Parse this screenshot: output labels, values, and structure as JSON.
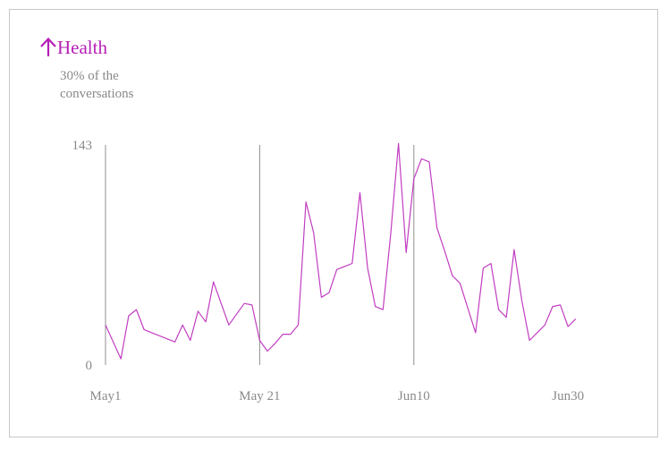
{
  "header": {
    "title": "Health",
    "subtitle": "30% of the conversations",
    "trend_icon": "arrow-up-icon",
    "accent_color": "#b51fb5"
  },
  "chart_data": {
    "type": "line",
    "title": "Health",
    "subtitle": "30% of the conversations",
    "xlabel": "",
    "ylabel": "",
    "x_tick_labels": [
      "May1",
      "May 21",
      "Jun10",
      "Jun30"
    ],
    "y_tick_labels": [
      "0",
      "143"
    ],
    "ylim": [
      0,
      143
    ],
    "grid": false,
    "reference_lines_at": [
      "May1",
      "May 21",
      "Jun10"
    ],
    "line_color": "#c13ec1",
    "series": [
      {
        "values": [
          26,
          15,
          4,
          32,
          36,
          23,
          21,
          19,
          17,
          15,
          26,
          16,
          35,
          28,
          54,
          40,
          26,
          33,
          40,
          39,
          16,
          9,
          14,
          20,
          20,
          26,
          106,
          86,
          44,
          47,
          62,
          64,
          66,
          112,
          63,
          38,
          36,
          85,
          144,
          73,
          121,
          134,
          132,
          89,
          74,
          58,
          53,
          37,
          21,
          63,
          66,
          36,
          31,
          75,
          42,
          16,
          21,
          26,
          38,
          39,
          25,
          30
        ]
      }
    ]
  }
}
